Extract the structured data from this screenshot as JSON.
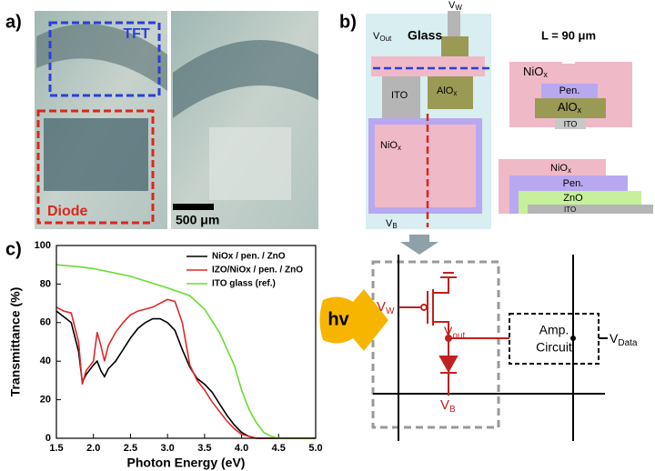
{
  "panel_a": {
    "label": "a)",
    "tft": "TFT",
    "diode": "Diode",
    "scale": "500 μm"
  },
  "panel_b": {
    "label": "b)",
    "v_out": {
      "main": "V",
      "sub": "Out"
    },
    "glass": "Glass",
    "v_w": {
      "main": "V",
      "sub": "W"
    },
    "length": "L = 90 μm",
    "top_ito": "ITO",
    "top_alox": {
      "main": "AlO",
      "sub": "x"
    },
    "top_niox": {
      "main": "NiO",
      "sub": "x"
    },
    "v_b": {
      "main": "V",
      "sub": "B"
    },
    "cross": {
      "niox": {
        "main": "NiO",
        "sub": "x"
      },
      "pen": "Pen.",
      "alox": {
        "main": "AlO",
        "sub": "x"
      },
      "ito": "ITO"
    },
    "stack": {
      "niox": {
        "main": "NiO",
        "sub": "x"
      },
      "pen": "Pen.",
      "zno": "ZnO",
      "ito": "ITO"
    },
    "circuit": {
      "hv": "hv",
      "v_w": {
        "main": "V",
        "sub": "W"
      },
      "v_out": {
        "main": "V",
        "sub": "out"
      },
      "v_b": {
        "main": "V",
        "sub": "B"
      },
      "amp": [
        "Amp.",
        "Circuit"
      ],
      "v_data": {
        "main": "V",
        "sub": "Data"
      }
    }
  },
  "chart_data": {
    "type": "line",
    "panel_label": "c)",
    "x_label": "Photon Energy (eV)",
    "y_label": "Transmittance (%)",
    "xlim": [
      1.5,
      5.0
    ],
    "ylim": [
      0,
      100
    ],
    "xticks": [
      1.5,
      {
        "value": 2,
        "label": "2.0"
      },
      2.5,
      {
        "value": 3,
        "label": "3.0"
      },
      3.5,
      {
        "value": 4,
        "label": "4.0"
      },
      4.5,
      {
        "value": 5,
        "label": "5.0"
      }
    ],
    "yticks": [
      0,
      20,
      40,
      60,
      80,
      100
    ],
    "series": [
      {
        "name": "NiOx / pen. / ZnO",
        "color": "#000000",
        "x": [
          1.5,
          1.6,
          1.7,
          1.8,
          1.85,
          1.9,
          2.0,
          2.05,
          2.1,
          2.15,
          2.2,
          2.3,
          2.4,
          2.5,
          2.6,
          2.7,
          2.8,
          2.9,
          3.0,
          3.1,
          3.2,
          3.3,
          3.4,
          3.5,
          3.6,
          3.7,
          3.8,
          3.9,
          4.0,
          4.1,
          4.2,
          4.3,
          4.5,
          5.0
        ],
        "values": [
          66,
          63,
          60,
          45,
          29,
          33,
          38,
          40,
          35,
          32,
          36,
          40,
          46,
          52,
          57,
          60,
          62,
          62,
          60,
          56,
          46,
          37,
          31,
          28,
          24,
          18,
          12,
          7,
          3,
          1,
          0,
          0,
          0,
          0
        ]
      },
      {
        "name": "IZO/NiOx / pen. / ZnO",
        "color": "#e02828",
        "x": [
          1.5,
          1.6,
          1.7,
          1.8,
          1.85,
          1.9,
          2.0,
          2.05,
          2.1,
          2.15,
          2.2,
          2.3,
          2.4,
          2.5,
          2.6,
          2.7,
          2.8,
          2.9,
          3.0,
          3.1,
          3.2,
          3.3,
          3.4,
          3.5,
          3.6,
          3.7,
          3.8,
          3.9,
          4.0,
          4.1,
          4.2,
          4.3,
          4.5,
          5.0
        ],
        "values": [
          68,
          66,
          65,
          50,
          28,
          35,
          40,
          55,
          48,
          40,
          48,
          55,
          60,
          64,
          66,
          67,
          68,
          70,
          72,
          71,
          60,
          38,
          30,
          25,
          19,
          14,
          9,
          5,
          2,
          1,
          0,
          0,
          0,
          0
        ]
      },
      {
        "name": "ITO glass (ref.)",
        "color": "#66dd33",
        "x": [
          1.5,
          1.8,
          2.0,
          2.5,
          3.0,
          3.3,
          3.5,
          3.7,
          3.9,
          4.0,
          4.1,
          4.2,
          4.3,
          4.4,
          4.5,
          5.0
        ],
        "values": [
          90,
          89,
          88,
          84,
          78,
          74,
          67,
          55,
          38,
          25,
          15,
          8,
          3,
          1,
          0,
          0
        ]
      }
    ]
  }
}
